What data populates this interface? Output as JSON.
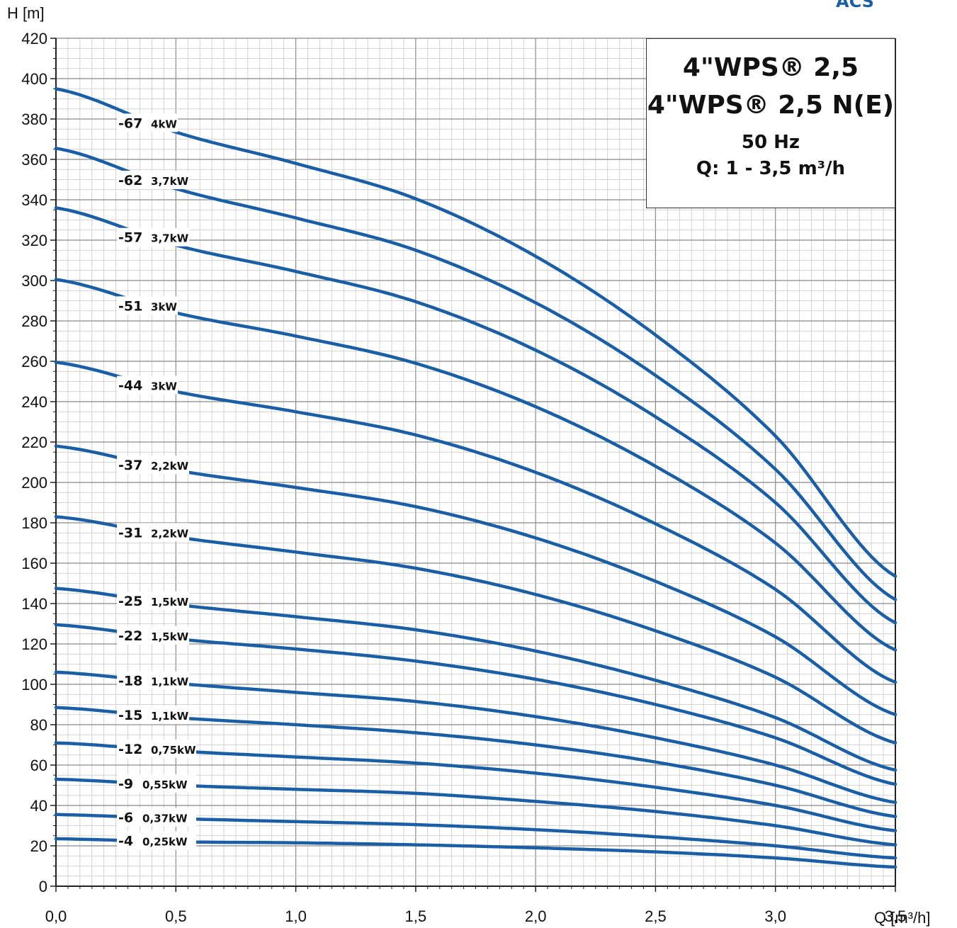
{
  "chart_data": {
    "type": "line",
    "xlabel": "Q [m³/h]",
    "ylabel": "H [m]",
    "xlim": [
      0,
      3.5
    ],
    "ylim": [
      0,
      420
    ],
    "x_ticks": [
      "0,0",
      "0,5",
      "1,0",
      "1,5",
      "2,0",
      "2,5",
      "3,0",
      "3,5"
    ],
    "y_ticks": [
      "0",
      "20",
      "40",
      "60",
      "80",
      "100",
      "120",
      "140",
      "160",
      "180",
      "200",
      "220",
      "240",
      "260",
      "280",
      "300",
      "320",
      "340",
      "360",
      "380",
      "400",
      "420"
    ],
    "grid": true,
    "x": [
      0,
      0.5,
      1.0,
      1.5,
      2.0,
      2.5,
      3.0,
      3.5
    ],
    "series": [
      {
        "name": "-4",
        "power": "0,25kW",
        "values": [
          23.5,
          22,
          21.5,
          20.5,
          19,
          17,
          14,
          9.5
        ]
      },
      {
        "name": "-6",
        "power": "0,37kW",
        "values": [
          35.5,
          33.5,
          32,
          30.5,
          28,
          24.5,
          20,
          14
        ]
      },
      {
        "name": "-9",
        "power": "0,55kW",
        "values": [
          53,
          50,
          48,
          46,
          42,
          37,
          30,
          20.5
        ]
      },
      {
        "name": "-12",
        "power": "0,75kW",
        "values": [
          71,
          67,
          64,
          61,
          56,
          49,
          40,
          27.5
        ]
      },
      {
        "name": "-15",
        "power": "1,1kW",
        "values": [
          88.5,
          83.5,
          80,
          76,
          70,
          61.5,
          50,
          34.5
        ]
      },
      {
        "name": "-18",
        "power": "1,1kW",
        "values": [
          106,
          100.5,
          96,
          91.5,
          84,
          73.5,
          60,
          41.5
        ]
      },
      {
        "name": "-22",
        "power": "1,5kW",
        "values": [
          129.5,
          122.5,
          117.5,
          111.5,
          102.5,
          90,
          73.5,
          50.5
        ]
      },
      {
        "name": "-25",
        "power": "1,5kW",
        "values": [
          147.5,
          139.5,
          133.5,
          127,
          116.5,
          102,
          83.5,
          57.5
        ]
      },
      {
        "name": "-31",
        "power": "2,2kW",
        "values": [
          183,
          173,
          165.5,
          157.5,
          144.5,
          126.5,
          103.5,
          71
        ]
      },
      {
        "name": "-37",
        "power": "2,2kW",
        "values": [
          218,
          206,
          197.5,
          188,
          172.5,
          151,
          123.5,
          85
        ]
      },
      {
        "name": "-44",
        "power": "3kW",
        "values": [
          259.5,
          245,
          235,
          223.5,
          205,
          179.5,
          147,
          101
        ]
      },
      {
        "name": "-51",
        "power": "3kW",
        "values": [
          300.5,
          284,
          272.5,
          259,
          237.5,
          208,
          170,
          117
        ]
      },
      {
        "name": "-57",
        "power": "3,7kW",
        "values": [
          336,
          317.5,
          304.5,
          289.5,
          265.5,
          232.5,
          190,
          130.5
        ]
      },
      {
        "name": "-62",
        "power": "3,7kW",
        "values": [
          365.5,
          345.5,
          331,
          315,
          289,
          253,
          206.5,
          142
        ]
      },
      {
        "name": "-67",
        "power": "4kW",
        "values": [
          395,
          373.5,
          358,
          340.5,
          312,
          273,
          223,
          153.5
        ]
      }
    ]
  },
  "title_box": {
    "line1": "4\"WPS® 2,5",
    "line2": "4\"WPS® 2,5 N(E)",
    "line3": "50 Hz",
    "line4": "Q: 1 - 3,5 m³/h"
  },
  "logo_text": "ACS",
  "colors": {
    "curve": "#1a5fa6",
    "grid_major": "#8a8a8a",
    "grid_minor": "#c8c8c8"
  }
}
